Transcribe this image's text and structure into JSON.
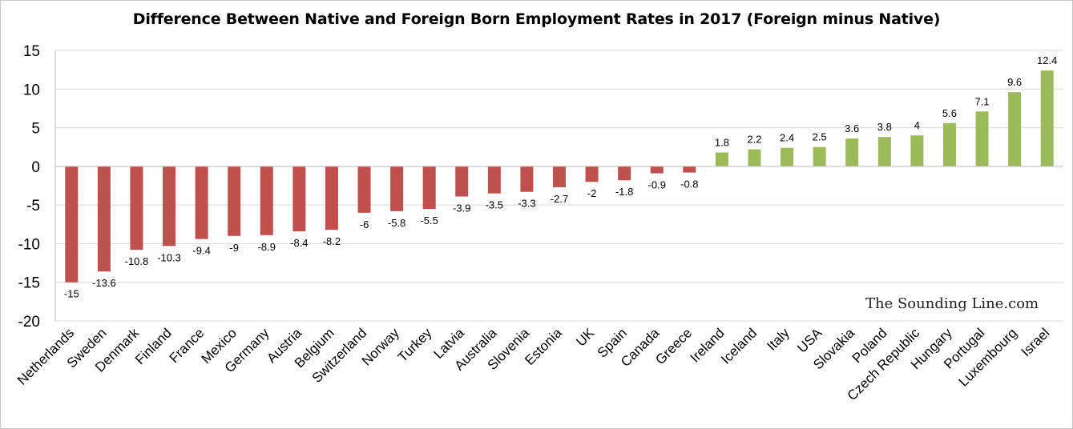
{
  "chart_data": {
    "type": "bar",
    "title": "Difference Between Native and Foreign Born Employment Rates in 2017 (Foreign minus Native)",
    "xlabel": "",
    "ylabel": "",
    "ylim": [
      -20,
      15
    ],
    "yticks": [
      15,
      10,
      5,
      0,
      -5,
      -10,
      -15,
      -20
    ],
    "grid": true,
    "legend": "none",
    "categories": [
      "Netherlands",
      "Sweden",
      "Denmark",
      "Finland",
      "France",
      "Mexico",
      "Germany",
      "Austria",
      "Belgium",
      "Switzerland",
      "Norway",
      "Turkey",
      "Latvia",
      "Australia",
      "Slovenia",
      "Estonia",
      "UK",
      "Spain",
      "Canada",
      "Greece",
      "Ireland",
      "Iceland",
      "Italy",
      "USA",
      "Slovakia",
      "Poland",
      "Czech Republic",
      "Hungary",
      "Portugal",
      "Luxembourg",
      "Israel"
    ],
    "values": [
      -15,
      -13.6,
      -10.8,
      -10.3,
      -9.4,
      -9,
      -8.9,
      -8.4,
      -8.2,
      -6,
      -5.8,
      -5.5,
      -3.9,
      -3.5,
      -3.3,
      -2.7,
      -2,
      -1.8,
      -0.9,
      -0.8,
      1.8,
      2.2,
      2.4,
      2.5,
      3.6,
      3.8,
      4,
      5.6,
      7.1,
      9.6,
      12.4
    ],
    "data_labels": [
      "-15",
      "-13.6",
      "-10.8",
      "-10.3",
      "-9.4",
      "-9",
      "-8.9",
      "-8.4",
      "-8.2",
      "-6",
      "-5.8",
      "-5.5",
      "-3.9",
      "-3.5",
      "-3.3",
      "-2.7",
      "-2",
      "-1.8",
      "-0.9",
      "-0.8",
      "1.8",
      "2.2",
      "2.4",
      "2.5",
      "3.6",
      "3.8",
      "4",
      "5.6",
      "7.1",
      "9.6",
      "12.4"
    ],
    "colors": {
      "negative": "#c0504d",
      "positive": "#9bbb59",
      "grid": "#d9d9d9"
    }
  },
  "watermark": "The Sounding Line.com"
}
